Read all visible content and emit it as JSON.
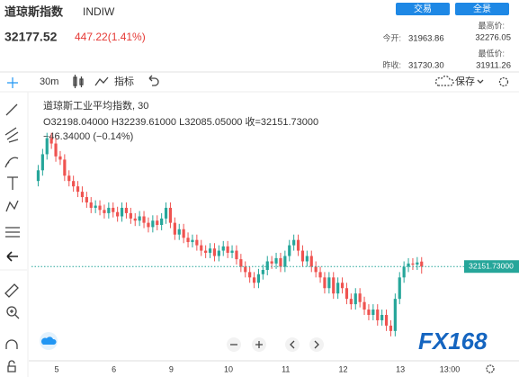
{
  "header": {
    "name": "道琼斯指数",
    "code": "INDIW",
    "price": "32177.52",
    "change": "447.22(1.41%)",
    "buttons": [
      "交易",
      "全景"
    ]
  },
  "stats": [
    {
      "label": "今开:",
      "value": "31963.86"
    },
    {
      "label": "最高价:",
      "value": "32276.05"
    },
    {
      "label": "昨收:",
      "value": "31730.30"
    },
    {
      "label": "最低价:",
      "value": "31911.26"
    }
  ],
  "toolbar": {
    "interval": "30m",
    "indicators": "指标",
    "save": "保存"
  },
  "chart_data": {
    "type": "candlestick",
    "legend_title": "道琼斯工业平均指数, 30",
    "legend_ohlc": "O32198.04000  H32239.61000  L32085.05000  收=32151.73000",
    "legend_change": "−46.34000 (−0.14%)",
    "categories": [
      null,
      null,
      null,
      null,
      null,
      "5",
      null,
      null,
      null,
      null,
      null,
      null,
      null,
      null,
      null,
      null,
      null,
      null,
      "6",
      null,
      null,
      null,
      null,
      null,
      null,
      null,
      null,
      null,
      null,
      null,
      null,
      "9",
      null,
      null,
      null,
      null,
      null,
      null,
      null,
      null,
      null,
      null,
      null,
      null,
      "10",
      null,
      null,
      null,
      null,
      null,
      null,
      null,
      null,
      null,
      null,
      null,
      null,
      "11",
      null,
      null,
      null,
      null,
      null,
      null,
      null,
      null,
      null,
      null,
      null,
      null,
      "12",
      null,
      null,
      null,
      null,
      null,
      null,
      null,
      null,
      null,
      null,
      null,
      null,
      "13",
      null,
      null,
      null,
      null
    ],
    "open": [
      32950,
      33050,
      33200,
      33350,
      33300,
      33180,
      33150,
      33000,
      32950,
      32900,
      32850,
      32800,
      32750,
      32700,
      32720,
      32680,
      32650,
      32700,
      32660,
      32620,
      32700,
      32650,
      32600,
      32580,
      32620,
      32560,
      32520,
      32580,
      32540,
      32600,
      32700,
      32560,
      32450,
      32500,
      32420,
      32380,
      32400,
      32350,
      32300,
      32280,
      32320,
      32250,
      32300,
      32340,
      32280,
      32300,
      32220,
      32150,
      32100,
      32050,
      32000,
      32080,
      32120,
      32200,
      32180,
      32230,
      32150,
      32250,
      32350,
      32400,
      32300,
      32200,
      32250,
      32150,
      32100,
      32050,
      31950,
      32050,
      31900,
      32000,
      31950,
      31850,
      31800,
      31900,
      31820,
      31750,
      31700,
      31750,
      31650,
      31700,
      31600,
      31550,
      31850,
      32050,
      32150,
      32180,
      32170,
      32198.04
    ],
    "high": [
      33100,
      33250,
      33400,
      33400,
      33350,
      33230,
      33200,
      33050,
      33000,
      32950,
      32900,
      32850,
      32800,
      32770,
      32770,
      32730,
      32750,
      32750,
      32710,
      32750,
      32750,
      32700,
      32650,
      32670,
      32670,
      32610,
      32630,
      32630,
      32650,
      32750,
      32750,
      32610,
      32550,
      32550,
      32470,
      32450,
      32450,
      32400,
      32350,
      32370,
      32370,
      32350,
      32390,
      32390,
      32350,
      32350,
      32270,
      32200,
      32150,
      32100,
      32130,
      32170,
      32250,
      32250,
      32280,
      32280,
      32300,
      32400,
      32450,
      32450,
      32350,
      32300,
      32300,
      32200,
      32150,
      32100,
      32100,
      32100,
      32050,
      32050,
      32000,
      31900,
      31950,
      31950,
      31870,
      31800,
      31800,
      31800,
      31750,
      31750,
      31650,
      31900,
      32100,
      32200,
      32230,
      32230,
      32240,
      32239.61
    ],
    "low": [
      32900,
      33000,
      33150,
      33250,
      33130,
      33100,
      32950,
      32900,
      32850,
      32800,
      32750,
      32700,
      32650,
      32650,
      32630,
      32600,
      32600,
      32610,
      32570,
      32570,
      32600,
      32550,
      32530,
      32530,
      32510,
      32470,
      32470,
      32490,
      32490,
      32550,
      32510,
      32400,
      32400,
      32370,
      32330,
      32330,
      32300,
      32250,
      32230,
      32230,
      32200,
      32200,
      32250,
      32230,
      32230,
      32170,
      32100,
      32050,
      32000,
      31950,
      31950,
      32030,
      32070,
      32130,
      32130,
      32100,
      32100,
      32200,
      32300,
      32250,
      32150,
      32150,
      32100,
      32050,
      32000,
      31900,
      31900,
      31850,
      31850,
      31900,
      31800,
      31750,
      31750,
      31770,
      31700,
      31650,
      31650,
      31600,
      31600,
      31550,
      31500,
      31500,
      31800,
      32000,
      32100,
      32120,
      32120,
      32085.05
    ],
    "close": [
      33050,
      33200,
      33350,
      33300,
      33180,
      33150,
      33000,
      32950,
      32900,
      32850,
      32800,
      32750,
      32700,
      32720,
      32680,
      32650,
      32700,
      32660,
      32620,
      32700,
      32650,
      32600,
      32580,
      32620,
      32560,
      32520,
      32580,
      32540,
      32600,
      32700,
      32560,
      32450,
      32500,
      32420,
      32380,
      32400,
      32350,
      32300,
      32280,
      32320,
      32250,
      32300,
      32340,
      32280,
      32300,
      32220,
      32150,
      32100,
      32050,
      32000,
      32080,
      32120,
      32200,
      32180,
      32230,
      32150,
      32250,
      32350,
      32400,
      32300,
      32200,
      32250,
      32150,
      32100,
      32050,
      31950,
      32050,
      31900,
      32000,
      31950,
      31850,
      31800,
      31900,
      31820,
      31750,
      31700,
      31750,
      31650,
      31700,
      31600,
      31550,
      31850,
      32050,
      32150,
      32180,
      32170,
      32190,
      32151.73
    ],
    "up_color": "#26a69a",
    "down_color": "#ef5350",
    "ylim": [
      31280,
      33800
    ],
    "last_price": {
      "value": 32151.73,
      "label": "32151.73000"
    },
    "time_label": "13:00",
    "watermark": "FX168"
  }
}
